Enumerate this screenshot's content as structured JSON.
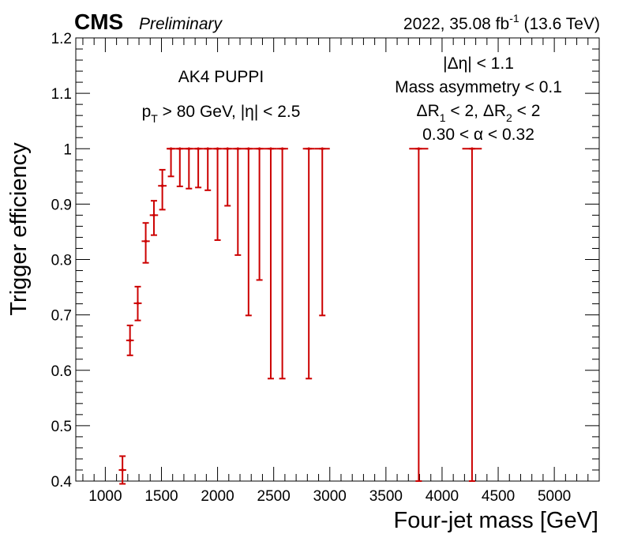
{
  "header": {
    "experiment": "CMS",
    "status": "Preliminary",
    "lumi_text": "2022, 35.08 fb",
    "lumi_exp": "-1",
    "energy_text": " (13.6 TeV)"
  },
  "annotations": {
    "left": [
      {
        "parts": [
          {
            "t": "AK4 PUPPI"
          }
        ]
      },
      {
        "parts": [
          {
            "t": "p"
          },
          {
            "t": "T",
            "sub": true
          },
          {
            "t": " > 80 GeV, |η| < 2.5"
          }
        ]
      }
    ],
    "right": [
      {
        "parts": [
          {
            "t": "|Δη| < 1.1"
          }
        ]
      },
      {
        "parts": [
          {
            "t": "Mass asymmetry < 0.1"
          }
        ]
      },
      {
        "parts": [
          {
            "t": "ΔR"
          },
          {
            "t": "1",
            "sub": true
          },
          {
            "t": " < 2, ΔR"
          },
          {
            "t": "2",
            "sub": true
          },
          {
            "t": " < 2"
          }
        ]
      },
      {
        "parts": [
          {
            "t": "0.30 < α < 0.32"
          }
        ]
      }
    ]
  },
  "colors": {
    "marker": "#cc0000",
    "axis": "#000000"
  },
  "chart_data": {
    "type": "scatter",
    "style": "error-bars",
    "xlabel": "Four-jet mass [GeV]",
    "ylabel": "Trigger efficiency",
    "xlim": [
      737,
      5400
    ],
    "ylim": [
      0.4,
      1.2
    ],
    "xticks": [
      1000,
      1500,
      2000,
      2500,
      3000,
      3500,
      4000,
      4500,
      5000
    ],
    "yticks": [
      0.4,
      0.5,
      0.6,
      0.7,
      0.8,
      0.9,
      1.0,
      1.1,
      1.2
    ],
    "ytick_labels": [
      "0.4",
      "0.5",
      "0.6",
      "0.7",
      "0.8",
      "0.9",
      "1",
      "1.1",
      "1.2"
    ],
    "points": [
      {
        "x": 1153,
        "xlo": 1120,
        "xhi": 1186,
        "y": 0.42,
        "ylo": 0.395,
        "yhi": 0.445
      },
      {
        "x": 1220,
        "xlo": 1186,
        "xhi": 1254,
        "y": 0.654,
        "ylo": 0.627,
        "yhi": 0.681
      },
      {
        "x": 1289,
        "xlo": 1254,
        "xhi": 1324,
        "y": 0.721,
        "ylo": 0.69,
        "yhi": 0.751
      },
      {
        "x": 1360,
        "xlo": 1324,
        "xhi": 1396,
        "y": 0.833,
        "ylo": 0.794,
        "yhi": 0.866
      },
      {
        "x": 1433,
        "xlo": 1396,
        "xhi": 1470,
        "y": 0.88,
        "ylo": 0.844,
        "yhi": 0.906
      },
      {
        "x": 1508,
        "xlo": 1470,
        "xhi": 1546,
        "y": 0.933,
        "ylo": 0.89,
        "yhi": 0.962
      },
      {
        "x": 1585,
        "xlo": 1546,
        "xhi": 1624,
        "y": 1.0,
        "ylo": 0.95,
        "yhi": 1.0
      },
      {
        "x": 1664,
        "xlo": 1624,
        "xhi": 1704,
        "y": 1.0,
        "ylo": 0.932,
        "yhi": 1.0
      },
      {
        "x": 1745,
        "xlo": 1704,
        "xhi": 1786,
        "y": 1.0,
        "ylo": 0.928,
        "yhi": 1.0
      },
      {
        "x": 1828,
        "xlo": 1786,
        "xhi": 1870,
        "y": 1.0,
        "ylo": 0.93,
        "yhi": 1.0
      },
      {
        "x": 1913,
        "xlo": 1870,
        "xhi": 1956,
        "y": 1.0,
        "ylo": 0.925,
        "yhi": 1.0
      },
      {
        "x": 2000,
        "xlo": 1956,
        "xhi": 2044,
        "y": 1.0,
        "ylo": 0.835,
        "yhi": 1.0
      },
      {
        "x": 2089,
        "xlo": 2044,
        "xhi": 2134,
        "y": 1.0,
        "ylo": 0.897,
        "yhi": 1.0
      },
      {
        "x": 2181,
        "xlo": 2134,
        "xhi": 2228,
        "y": 1.0,
        "ylo": 0.808,
        "yhi": 1.0
      },
      {
        "x": 2276,
        "xlo": 2228,
        "xhi": 2324,
        "y": 1.0,
        "ylo": 0.699,
        "yhi": 1.0
      },
      {
        "x": 2373,
        "xlo": 2324,
        "xhi": 2422,
        "y": 1.0,
        "ylo": 0.763,
        "yhi": 1.0
      },
      {
        "x": 2474,
        "xlo": 2422,
        "xhi": 2526,
        "y": 1.0,
        "ylo": 0.585,
        "yhi": 1.0
      },
      {
        "x": 2577,
        "xlo": 2526,
        "xhi": 2628,
        "y": 1.0,
        "ylo": 0.585,
        "yhi": 1.0
      },
      {
        "x": 2813,
        "xlo": 2760,
        "xhi": 2866,
        "y": 1.0,
        "ylo": 0.585,
        "yhi": 1.0
      },
      {
        "x": 2933,
        "xlo": 2866,
        "xhi": 3000,
        "y": 1.0,
        "ylo": 0.699,
        "yhi": 1.0
      },
      {
        "x": 3792,
        "xlo": 3707,
        "xhi": 3877,
        "y": 1.0,
        "ylo": 0.4,
        "yhi": 1.0
      },
      {
        "x": 4267,
        "xlo": 4180,
        "xhi": 4354,
        "y": 1.0,
        "ylo": 0.4,
        "yhi": 1.0
      }
    ]
  }
}
